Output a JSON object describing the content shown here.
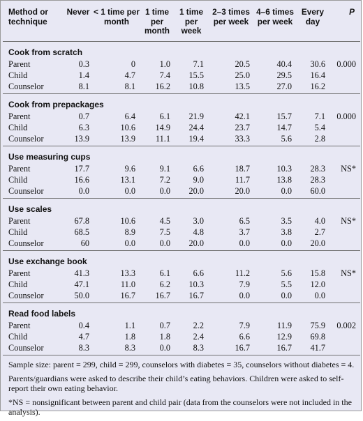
{
  "columns": [
    "Method or technique",
    "Never",
    "< 1 time per month",
    "1 time per month",
    "1 time per week",
    "2–3 times per week",
    "4–6 times per week",
    "Every day",
    "P"
  ],
  "sections": [
    {
      "title": "Cook from scratch",
      "rows": [
        {
          "label": "Parent",
          "values": [
            "0.3",
            "0",
            "1.0",
            "7.1",
            "20.5",
            "40.4",
            "30.6"
          ],
          "p": "0.000"
        },
        {
          "label": "Child",
          "values": [
            "1.4",
            "4.7",
            "7.4",
            "15.5",
            "25.0",
            "29.5",
            "16.4"
          ],
          "p": ""
        },
        {
          "label": "Counselor",
          "values": [
            "8.1",
            "8.1",
            "16.2",
            "10.8",
            "13.5",
            "27.0",
            "16.2"
          ],
          "p": ""
        }
      ]
    },
    {
      "title": "Cook from prepackages",
      "rows": [
        {
          "label": "Parent",
          "values": [
            "0.7",
            "6.4",
            "6.1",
            "21.9",
            "42.1",
            "15.7",
            "7.1"
          ],
          "p": "0.000"
        },
        {
          "label": "Child",
          "values": [
            "6.3",
            "10.6",
            "14.9",
            "24.4",
            "23.7",
            "14.7",
            "5.4"
          ],
          "p": ""
        },
        {
          "label": "Counselor",
          "values": [
            "13.9",
            "13.9",
            "11.1",
            "19.4",
            "33.3",
            "5.6",
            "2.8"
          ],
          "p": ""
        }
      ]
    },
    {
      "title": "Use measuring cups",
      "rows": [
        {
          "label": "Parent",
          "values": [
            "17.7",
            "9.6",
            "9.1",
            "6.6",
            "18.7",
            "10.3",
            "28.3"
          ],
          "p": "NS*"
        },
        {
          "label": "Child",
          "values": [
            "16.6",
            "13.1",
            "7.2",
            "9.0",
            "11.7",
            "13.8",
            "28.3"
          ],
          "p": ""
        },
        {
          "label": "Counselor",
          "values": [
            "0.0",
            "0.0",
            "0.0",
            "20.0",
            "20.0",
            "0.0",
            "60.0"
          ],
          "p": ""
        }
      ]
    },
    {
      "title": "Use scales",
      "rows": [
        {
          "label": "Parent",
          "values": [
            "67.8",
            "10.6",
            "4.5",
            "3.0",
            "6.5",
            "3.5",
            "4.0"
          ],
          "p": "NS*"
        },
        {
          "label": "Child",
          "values": [
            "68.5",
            "8.9",
            "7.5",
            "4.8",
            "3.7",
            "3.8",
            "2.7"
          ],
          "p": ""
        },
        {
          "label": "Counselor",
          "values": [
            "60",
            "0.0",
            "0.0",
            "20.0",
            "0.0",
            "0.0",
            "20.0"
          ],
          "p": ""
        }
      ]
    },
    {
      "title": "Use exchange book",
      "rows": [
        {
          "label": "Parent",
          "values": [
            "41.3",
            "13.3",
            "6.1",
            "6.6",
            "11.2",
            "5.6",
            "15.8"
          ],
          "p": "NS*"
        },
        {
          "label": "Child",
          "values": [
            "47.1",
            "11.0",
            "6.2",
            "10.3",
            "7.9",
            "5.5",
            "12.0"
          ],
          "p": ""
        },
        {
          "label": "Counselor",
          "values": [
            "50.0",
            "16.7",
            "16.7",
            "16.7",
            "0.0",
            "0.0",
            "0.0"
          ],
          "p": ""
        }
      ]
    },
    {
      "title": "Read food labels",
      "rows": [
        {
          "label": "Parent",
          "values": [
            "0.4",
            "1.1",
            "0.7",
            "2.2",
            "7.9",
            "11.9",
            "75.9"
          ],
          "p": "0.002"
        },
        {
          "label": "Child",
          "values": [
            "4.7",
            "1.8",
            "1.8",
            "2.4",
            "6.6",
            "12.9",
            "69.8"
          ],
          "p": ""
        },
        {
          "label": "Counselor",
          "values": [
            "8.3",
            "8.3",
            "0.0",
            "8.3",
            "16.7",
            "16.7",
            "41.7"
          ],
          "p": ""
        }
      ]
    }
  ],
  "footnotes": [
    "Sample size: parent = 299, child = 299, counselors with diabetes = 35, counselors without diabetes = 4.",
    "Parents/guardians were asked to describe their child’s eating behaviors. Children were asked to self-report their own eating behavior.",
    "*NS = nonsignificant between parent and child pair (data from the counselors were not included in the analysis)."
  ]
}
